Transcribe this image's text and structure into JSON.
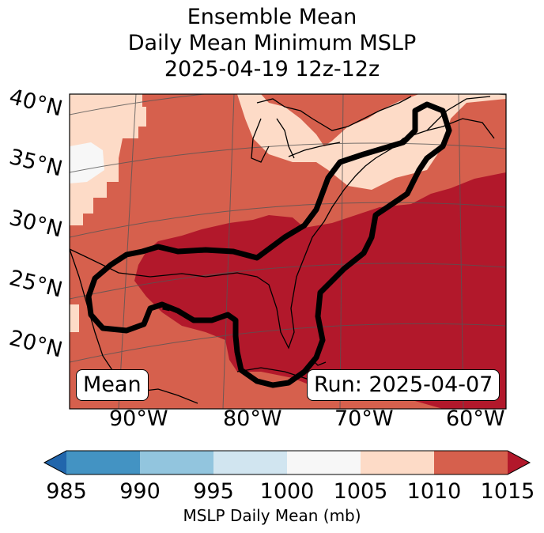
{
  "title": {
    "line1": "Ensemble Mean",
    "line2": "Daily Mean Minimum MSLP",
    "line3": "2025-04-19 12z-12z"
  },
  "map": {
    "latitude_labels": [
      "40°N",
      "35°N",
      "30°N",
      "25°N",
      "20°N"
    ],
    "longitude_labels": [
      "90°W",
      "80°W",
      "70°W",
      "60°W"
    ],
    "mean_box_label": "Mean",
    "run_box_label": "Run: 2025-04-07",
    "contour_color": "#000000"
  },
  "colorbar": {
    "tick_labels": [
      "985",
      "990",
      "995",
      "1000",
      "1005",
      "1010",
      "1015"
    ],
    "label": "MSLP Daily Mean (mb)",
    "bins": [
      {
        "range": "<985",
        "color": "#2166ac"
      },
      {
        "range": "985-990",
        "color": "#4393c3"
      },
      {
        "range": "990-995",
        "color": "#92c5de"
      },
      {
        "range": "995-1000",
        "color": "#d1e5f0"
      },
      {
        "range": "1000-1005",
        "color": "#f7f7f7"
      },
      {
        "range": "1005-1010",
        "color": "#fddbc7"
      },
      {
        "range": "1010-1015",
        "color": "#d6604d"
      },
      {
        "range": ">1015",
        "color": "#b2182b"
      }
    ]
  }
}
